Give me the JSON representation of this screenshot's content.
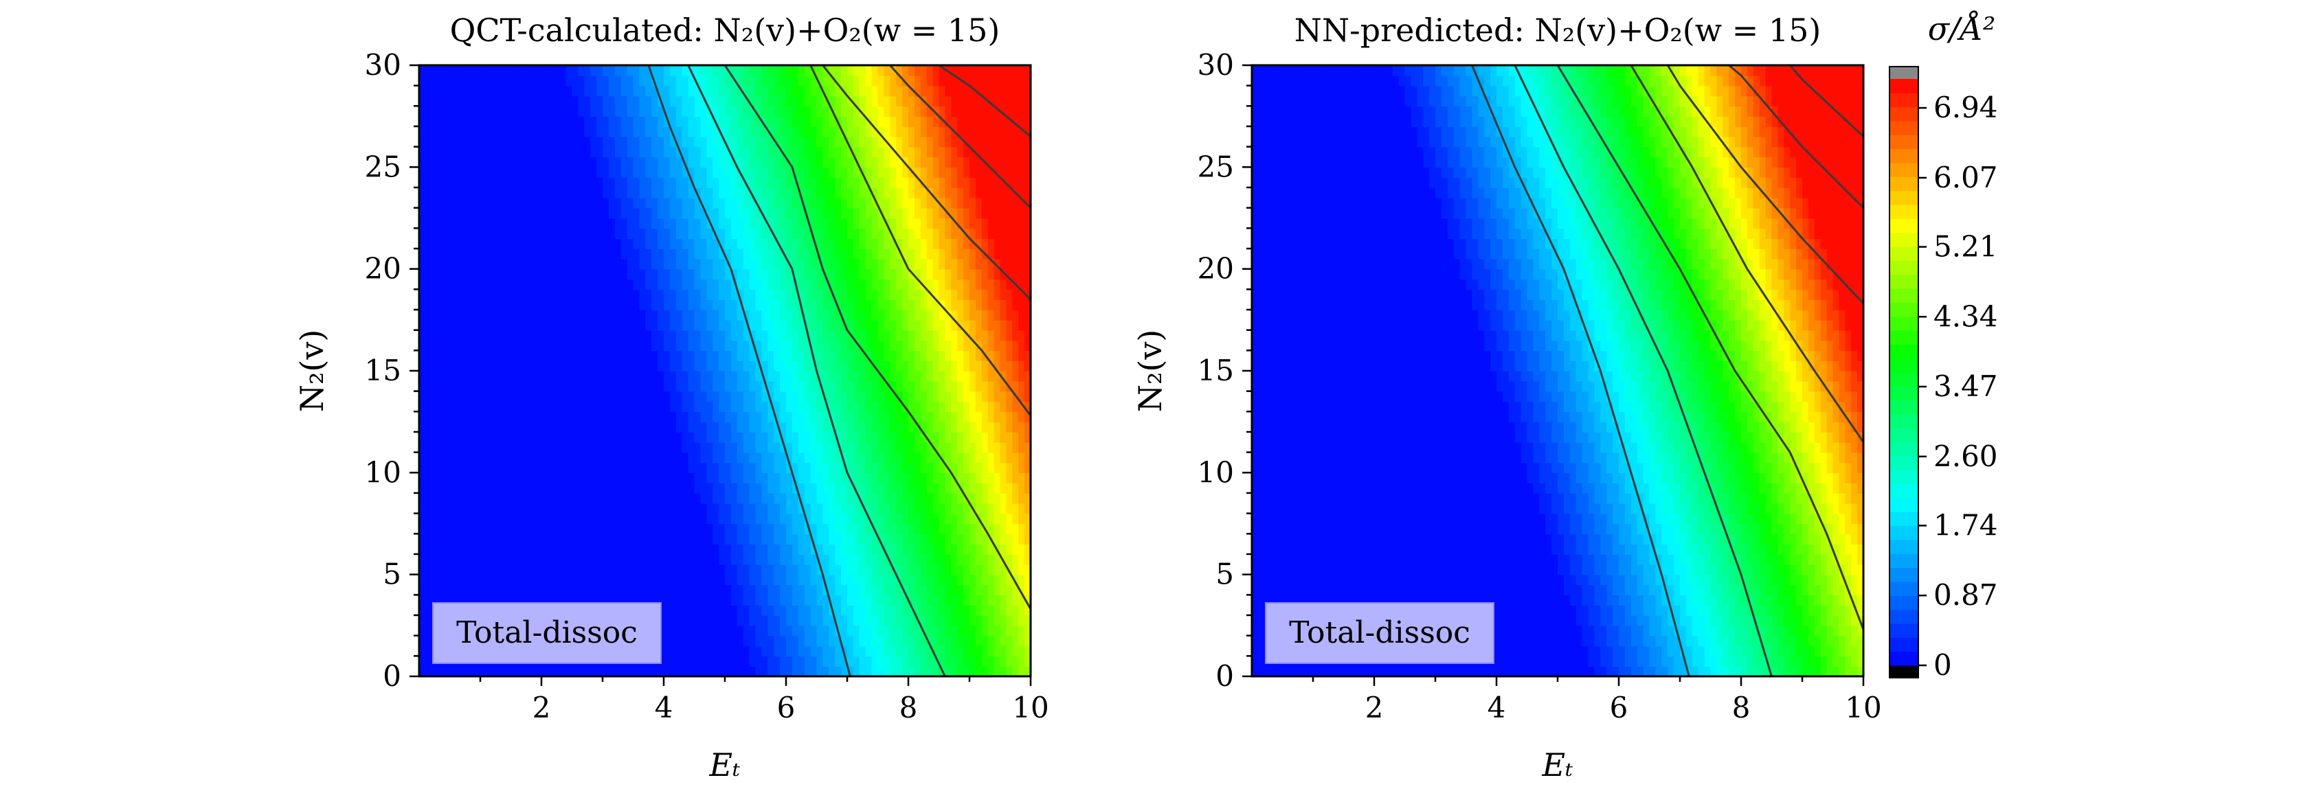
{
  "chart_data": [
    {
      "type": "contour",
      "title": "QCT-calculated: N₂(v)+O₂(w = 15)",
      "xlabel": "Eₜ",
      "ylabel": "N₂(v)",
      "xlim": [
        0,
        10
      ],
      "ylim": [
        0,
        30
      ],
      "xticks": [
        2,
        4,
        6,
        8,
        10
      ],
      "xtick_labels": [
        "2",
        "4",
        "6",
        "8",
        "10"
      ],
      "yticks": [
        0,
        5,
        10,
        15,
        20,
        25,
        30
      ],
      "ytick_labels": [
        "0",
        "5",
        "10",
        "15",
        "20",
        "25",
        "30"
      ],
      "annotation": "Total-dissoc",
      "model": {
        "onset_at_v0": 5.3,
        "onset_slope": 0.105,
        "growth": 0.78,
        "curvature": 0.055
      },
      "contour_lines": [
        {
          "level": 0.87,
          "points": [
            [
              7.05,
              0
            ],
            [
              6.6,
              5
            ],
            [
              6.1,
              10
            ],
            [
              5.6,
              15
            ],
            [
              5.1,
              20
            ],
            [
              4.5,
              24
            ],
            [
              4.1,
              27
            ],
            [
              3.75,
              30
            ]
          ]
        },
        {
          "level": 1.74,
          "points": [
            [
              8.6,
              0
            ],
            [
              7.8,
              5
            ],
            [
              7.0,
              10
            ],
            [
              6.5,
              15
            ],
            [
              6.1,
              20
            ],
            [
              5.2,
              25
            ],
            [
              4.4,
              30
            ]
          ]
        },
        {
          "level": 2.6,
          "points": [
            [
              10.0,
              3.3
            ],
            [
              9.3,
              7
            ],
            [
              8.7,
              10
            ],
            [
              8.0,
              13
            ],
            [
              7.0,
              17
            ],
            [
              6.6,
              20
            ],
            [
              6.1,
              25
            ],
            [
              5.0,
              30
            ]
          ]
        },
        {
          "level": 3.47,
          "points": [
            [
              10.0,
              12.8
            ],
            [
              9.2,
              16
            ],
            [
              8.0,
              20
            ],
            [
              7.2,
              25
            ],
            [
              6.4,
              30
            ]
          ]
        },
        {
          "level": 4.34,
          "points": [
            [
              10.0,
              18.5
            ],
            [
              9.0,
              21.5
            ],
            [
              8.0,
              25
            ],
            [
              7.0,
              28.5
            ],
            [
              6.6,
              30
            ]
          ]
        },
        {
          "level": 5.21,
          "points": [
            [
              10.0,
              23
            ],
            [
              9.0,
              26
            ],
            [
              8.0,
              29
            ],
            [
              7.7,
              30
            ]
          ]
        },
        {
          "level": 6.07,
          "points": [
            [
              10.0,
              26.5
            ],
            [
              9.0,
              29
            ],
            [
              8.5,
              30
            ]
          ]
        }
      ]
    },
    {
      "type": "contour",
      "title": "NN-predicted: N₂(v)+O₂(w = 15)",
      "xlabel": "Eₜ",
      "ylabel": "N₂(v)",
      "xlim": [
        0,
        10
      ],
      "ylim": [
        0,
        30
      ],
      "xticks": [
        2,
        4,
        6,
        8,
        10
      ],
      "xtick_labels": [
        "2",
        "4",
        "6",
        "8",
        "10"
      ],
      "yticks": [
        0,
        5,
        10,
        15,
        20,
        25,
        30
      ],
      "ytick_labels": [
        "0",
        "5",
        "10",
        "15",
        "20",
        "25",
        "30"
      ],
      "annotation": "Total-dissoc",
      "model": {
        "onset_at_v0": 5.4,
        "onset_slope": 0.11,
        "growth": 0.8,
        "curvature": 0.055
      },
      "contour_lines": [
        {
          "level": 0.87,
          "points": [
            [
              7.15,
              0
            ],
            [
              6.7,
              5
            ],
            [
              6.2,
              10
            ],
            [
              5.7,
              15
            ],
            [
              5.1,
              20
            ],
            [
              4.3,
              25
            ],
            [
              3.6,
              30
            ]
          ]
        },
        {
          "level": 1.74,
          "points": [
            [
              8.5,
              0
            ],
            [
              8.0,
              5
            ],
            [
              7.4,
              10
            ],
            [
              6.8,
              15
            ],
            [
              6.0,
              20
            ],
            [
              5.1,
              25
            ],
            [
              4.3,
              30
            ]
          ]
        },
        {
          "level": 2.6,
          "points": [
            [
              10.0,
              2.3
            ],
            [
              9.4,
              7
            ],
            [
              8.8,
              11
            ],
            [
              7.9,
              15
            ],
            [
              7.0,
              20
            ],
            [
              6.0,
              25
            ],
            [
              5.0,
              30
            ]
          ]
        },
        {
          "level": 3.47,
          "points": [
            [
              10.0,
              11.5
            ],
            [
              9.2,
              15
            ],
            [
              8.1,
              20
            ],
            [
              7.2,
              25
            ],
            [
              6.2,
              30
            ]
          ]
        },
        {
          "level": 4.34,
          "points": [
            [
              10.0,
              18.3
            ],
            [
              9.0,
              21.5
            ],
            [
              8.0,
              25
            ],
            [
              7.0,
              29
            ],
            [
              6.8,
              30
            ]
          ]
        },
        {
          "level": 5.21,
          "points": [
            [
              10.0,
              23
            ],
            [
              9.0,
              26
            ],
            [
              8.0,
              29.5
            ],
            [
              7.8,
              30
            ]
          ]
        },
        {
          "level": 6.07,
          "points": [
            [
              10.0,
              26.5
            ],
            [
              9.0,
              29.3
            ],
            [
              8.8,
              30
            ]
          ]
        }
      ]
    }
  ],
  "colorbar": {
    "label": "σ/Å²",
    "min": 0,
    "max": 7.3,
    "ticks": [
      0,
      0.87,
      1.74,
      2.6,
      3.47,
      4.34,
      5.21,
      6.07,
      6.94
    ],
    "tick_labels": [
      "0",
      "0.87",
      "1.74",
      "2.60",
      "3.47",
      "4.34",
      "5.21",
      "6.07",
      "6.94"
    ],
    "bands": 42,
    "under_color": "#000000",
    "over_color": "#888888",
    "colors": {
      "blue": "#0000ff",
      "cyan": "#00ffff",
      "green": "#00ff00",
      "yellow": "#ffff00",
      "red": "#ff0000"
    }
  },
  "colors": {
    "contour_line": "#3a3a3a",
    "annotation_bg": "#b3b3ff",
    "annotation_border": "#8888ee"
  }
}
